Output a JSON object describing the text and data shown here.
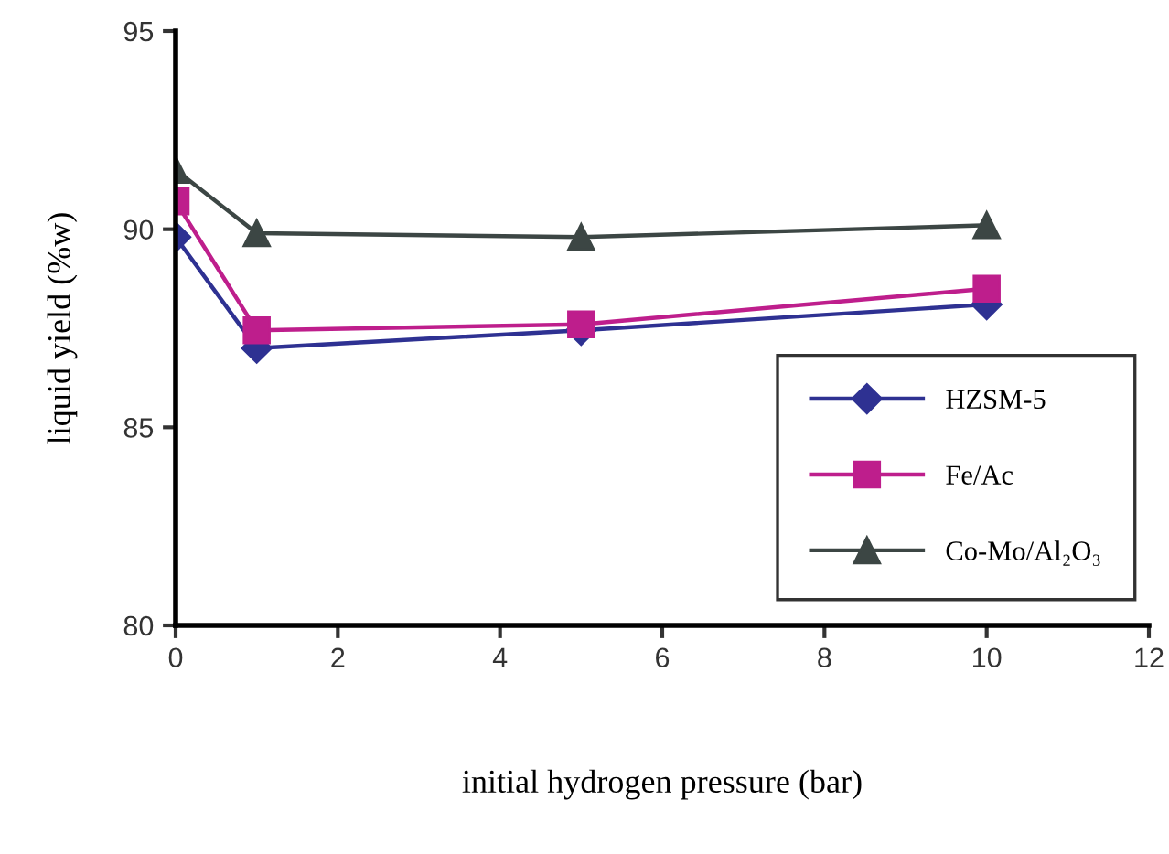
{
  "chart_data": {
    "type": "line",
    "xlabel": "initial hydrogen pressure (bar)",
    "ylabel": "liquid yield (%w)",
    "x": [
      0,
      1,
      5,
      10
    ],
    "series": [
      {
        "name": "HZSM-5",
        "color": "#2e3192",
        "values": [
          89.8,
          87.0,
          87.45,
          88.1
        ],
        "marker": "diamond"
      },
      {
        "name": "Fe/Ac",
        "color": "#be1e8c",
        "values": [
          90.7,
          87.45,
          87.6,
          88.5
        ],
        "marker": "square"
      },
      {
        "name": "Co-Mo/Al₂O₃",
        "color": "#3c4644",
        "values": [
          91.5,
          89.9,
          89.8,
          90.1
        ],
        "marker": "triangle"
      }
    ],
    "xlim": [
      0,
      12
    ],
    "xticks": [
      0,
      2,
      4,
      6,
      8,
      10,
      12
    ],
    "ylim": [
      80,
      95
    ],
    "yticks": [
      80,
      85,
      90,
      95
    ],
    "grid": false,
    "legend": "bottom right",
    "line_style": "solid"
  }
}
